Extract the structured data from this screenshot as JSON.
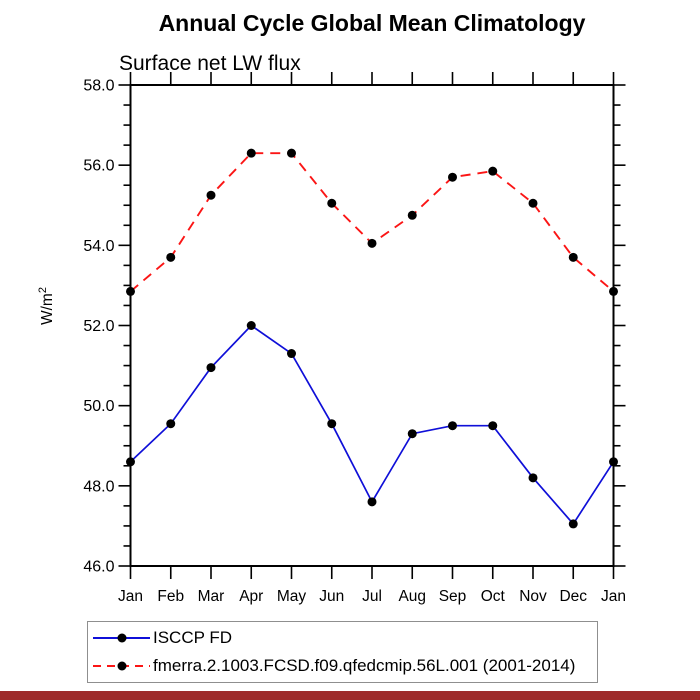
{
  "window": {
    "background": "#ffffff",
    "bottom_bar_color": "#9e2b2b"
  },
  "chart_data": {
    "type": "line",
    "title": "Annual Cycle Global Mean Climatology",
    "subtitle": "Surface net LW flux",
    "ylabel": "W/m²",
    "ylabel_base": "W/m",
    "ylabel_exp": "2",
    "categories": [
      "Jan",
      "Feb",
      "Mar",
      "Apr",
      "May",
      "Jun",
      "Jul",
      "Aug",
      "Sep",
      "Oct",
      "Nov",
      "Dec",
      "Jan"
    ],
    "ylim": [
      46.0,
      58.0
    ],
    "ytick_major_values": [
      46,
      48,
      50,
      52,
      54,
      56,
      58
    ],
    "ytick_labels": [
      "46.0",
      "48.0",
      "50.0",
      "52.0",
      "54.0",
      "56.0",
      "58.0"
    ],
    "ytick_minor_step": 0.5,
    "grid": false,
    "legend_position": "bottom-left-box",
    "axis_color": "#000000",
    "marker_color": "#000000",
    "series": [
      {
        "name": "ISCCP FD",
        "color": "#0f0fd8",
        "line_style": "solid",
        "marker": "filled-black-circle",
        "values": [
          48.6,
          49.55,
          50.95,
          52.0,
          51.3,
          49.55,
          47.6,
          49.3,
          49.5,
          49.5,
          48.2,
          47.05,
          48.6
        ]
      },
      {
        "name": "fmerra.2.1003.FCSD.f09.qfedcmip.56L.001 (2001-2014)",
        "color": "#fb1515",
        "line_style": "dashed",
        "marker": "filled-black-circle",
        "values": [
          52.85,
          53.7,
          55.25,
          56.3,
          56.3,
          55.05,
          54.05,
          54.75,
          55.7,
          55.85,
          55.05,
          53.7,
          52.85
        ]
      }
    ]
  }
}
